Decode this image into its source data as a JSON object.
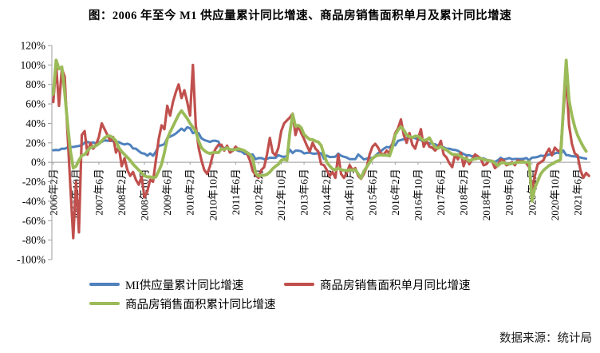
{
  "title": "图：2006 年至今 M1 供应量累计同比增速、商品房销售面积单月及累计同比增速",
  "source": "数据来源：统计局",
  "legend": [
    {
      "label": "MI供应量累计同比增速",
      "color": "#4F81BD"
    },
    {
      "label": "商品房销售面积单月同比增速",
      "color": "#C0504D"
    },
    {
      "label": "商品房销售面积累计同比增速",
      "color": "#9BBB59"
    }
  ],
  "chart_data": {
    "type": "line",
    "y_unit": "%",
    "ylim": [
      -100,
      120
    ],
    "y_tick_step": 20,
    "x_start": "2006年2月",
    "x_tick_interval_months": 8,
    "x_tick_labels": [
      "2006年2月",
      "2006年10月",
      "2007年6月",
      "2008年2月",
      "2008年10月",
      "2009年6月",
      "2010年2月",
      "2010年10月",
      "2011年6月",
      "2012年2月",
      "2012年10月",
      "2013年6月",
      "2014年2月",
      "2014年10月",
      "2015年6月",
      "2016年2月",
      "2016年10月",
      "2017年6月",
      "2018年2月",
      "2018年10月",
      "2019年6月",
      "2020年2月",
      "2020年10月",
      "2021年6月"
    ],
    "grid": false,
    "legend_position": "bottom",
    "series": [
      {
        "name": "MI供应量累计同比增速",
        "color": "#4F81BD",
        "values": [
          12.4,
          12.7,
          12.5,
          14.0,
          13.9,
          15.3,
          15.6,
          15.7,
          16.3,
          16.8,
          17.5,
          20.2,
          21.0,
          19.8,
          20.4,
          19.3,
          20.9,
          20.9,
          22.8,
          22.1,
          22.2,
          21.7,
          21.0,
          20.7,
          19.2,
          18.3,
          19.1,
          17.9,
          14.2,
          14.0,
          11.5,
          9.4,
          8.9,
          6.8,
          9.1,
          6.7,
          10.9,
          17.0,
          17.5,
          18.7,
          24.8,
          26.4,
          27.7,
          29.5,
          32.0,
          34.6,
          32.4,
          36.0,
          35.0,
          29.9,
          31.2,
          29.9,
          24.6,
          22.9,
          21.9,
          20.9,
          22.1,
          22.1,
          21.2,
          13.6,
          14.5,
          15.0,
          12.9,
          12.7,
          13.1,
          11.6,
          11.2,
          8.9,
          8.4,
          7.8,
          7.9,
          3.1,
          4.3,
          4.4,
          3.1,
          3.5,
          4.7,
          4.6,
          4.5,
          7.3,
          6.1,
          5.5,
          6.5,
          13.0,
          9.5,
          11.9,
          11.9,
          11.3,
          9.1,
          9.7,
          9.9,
          8.9,
          8.9,
          9.4,
          9.3,
          3.5,
          6.9,
          5.4,
          5.5,
          5.7,
          8.9,
          6.7,
          5.7,
          4.8,
          3.2,
          3.2,
          3.2,
          8.0,
          5.6,
          2.9,
          3.7,
          4.7,
          4.3,
          6.6,
          9.3,
          11.4,
          14.0,
          15.7,
          15.2,
          18.6,
          17.4,
          22.1,
          22.9,
          23.7,
          24.6,
          25.4,
          25.3,
          24.7,
          23.9,
          22.7,
          21.4,
          20.0,
          19.5,
          18.8,
          18.5,
          17.0,
          15.5,
          15.3,
          14.0,
          14.0,
          13.0,
          12.7,
          11.8,
          10.0,
          8.5,
          7.1,
          7.2,
          6.0,
          6.6,
          5.1,
          3.9,
          4.0,
          2.7,
          1.5,
          1.5,
          0.4,
          2.0,
          4.6,
          2.9,
          3.4,
          4.4,
          3.1,
          3.4,
          3.4,
          3.3,
          3.5,
          4.4,
          2.0,
          4.8,
          5.0,
          5.5,
          6.8,
          6.5,
          6.9,
          8.0,
          8.1,
          9.1,
          10.0,
          8.6,
          12.0,
          7.4,
          7.1,
          6.2,
          6.1,
          5.5,
          4.9,
          4.2,
          3.7
        ]
      },
      {
        "name": "商品房销售面积单月同比增速",
        "color": "#C0504D",
        "values": [
          62,
          100,
          58,
          96,
          88,
          30,
          -25,
          -78,
          -20,
          -72,
          28,
          32,
          8,
          20,
          14,
          18,
          26,
          40,
          34,
          28,
          22,
          26,
          10,
          16,
          -4,
          4,
          -8,
          -14,
          -10,
          -18,
          -23,
          -15,
          -36,
          -30,
          -18,
          -20,
          2,
          24,
          38,
          34,
          58,
          48,
          62,
          72,
          80,
          66,
          74,
          62,
          48,
          100,
          38,
          15,
          2,
          -8,
          -12,
          -4,
          8,
          14,
          18,
          18,
          12,
          17,
          10,
          12,
          16,
          13,
          13,
          12,
          9,
          2,
          -9,
          -13,
          -16,
          -8,
          -5,
          8,
          25,
          10,
          7,
          15,
          32,
          40,
          43,
          46,
          50,
          28,
          38,
          30,
          24,
          17,
          11,
          20,
          14,
          11,
          -2,
          -3,
          -8,
          -14,
          -10,
          -16,
          8,
          -12,
          -16,
          -11,
          -3,
          -8,
          -6,
          -14,
          -17,
          -12,
          -5,
          8,
          16,
          19,
          15,
          9,
          8,
          12,
          9,
          19,
          30,
          35,
          44,
          28,
          20,
          30,
          18,
          14,
          24,
          34,
          16,
          22,
          16,
          15,
          12,
          15,
          22,
          8,
          5,
          -1,
          -5,
          8,
          3,
          10,
          -4,
          5,
          -2,
          3,
          8,
          6,
          4,
          -3,
          -2,
          2,
          1,
          -6,
          -3,
          3,
          2,
          -3,
          -2,
          0,
          -3,
          2,
          1,
          1,
          -1,
          -5,
          -28,
          -14,
          -2,
          0,
          2,
          9,
          14,
          7,
          15,
          12,
          11,
          50,
          88,
          38,
          19,
          9,
          7,
          -8,
          -16,
          -11,
          -14
        ]
      },
      {
        "name": "商品房销售面积累计同比增速",
        "color": "#9BBB59",
        "values": [
          70,
          105,
          96,
          98,
          72,
          40,
          12,
          -6,
          -4,
          2,
          7,
          8,
          12,
          15,
          16,
          17,
          19,
          22,
          25,
          27,
          27,
          25,
          22,
          15,
          11,
          8,
          5,
          2,
          -2,
          -5,
          -8,
          -11,
          -14,
          -15,
          -15,
          -16,
          -15,
          -9,
          -2,
          10,
          24,
          31,
          37,
          43,
          49,
          53,
          49,
          45,
          40,
          36,
          32,
          22,
          15,
          12,
          10,
          9,
          10,
          10,
          10,
          14,
          13,
          15,
          13,
          13,
          13,
          14,
          13,
          12,
          10,
          8,
          4,
          -11,
          -14,
          -13.6,
          -13.4,
          -12.4,
          -10,
          -6.6,
          -4.1,
          -2,
          2,
          3,
          2,
          30,
          49.5,
          37.1,
          38,
          35.6,
          28.7,
          25.8,
          23.4,
          23.3,
          21.8,
          20.8,
          17.3,
          8,
          -0.1,
          -3.8,
          -6.9,
          -7.8,
          -6.0,
          -7.6,
          -8.3,
          -8.6,
          -7.8,
          -8.2,
          -7.6,
          -12,
          -16.3,
          -9.2,
          -4.8,
          -0.2,
          3.9,
          6.1,
          7.2,
          7.5,
          7.2,
          7.4,
          6.5,
          15,
          28.2,
          33.1,
          36.5,
          33.2,
          27.9,
          26.4,
          25.5,
          26.9,
          26.8,
          24.3,
          22.5,
          23,
          25.1,
          19.5,
          15.7,
          14.3,
          16.1,
          14.0,
          12.7,
          10.3,
          8.2,
          7.9,
          7.7,
          6,
          4.1,
          3.6,
          1.3,
          2.9,
          3.3,
          4.2,
          4.0,
          2.9,
          2.2,
          1.4,
          1.3,
          -1,
          -3.6,
          -0.9,
          -0.3,
          -1.6,
          -1.8,
          -1.3,
          -0.6,
          -0.1,
          0.1,
          0.2,
          -0.1,
          0.5,
          -39.9,
          -26.3,
          -19.3,
          -12.3,
          -8.4,
          -5.8,
          -3.3,
          -1.8,
          0.0,
          1.3,
          2.6,
          55,
          104.9,
          63.8,
          48.1,
          36.3,
          27.7,
          21.5,
          15.9,
          11.3
        ]
      }
    ]
  }
}
